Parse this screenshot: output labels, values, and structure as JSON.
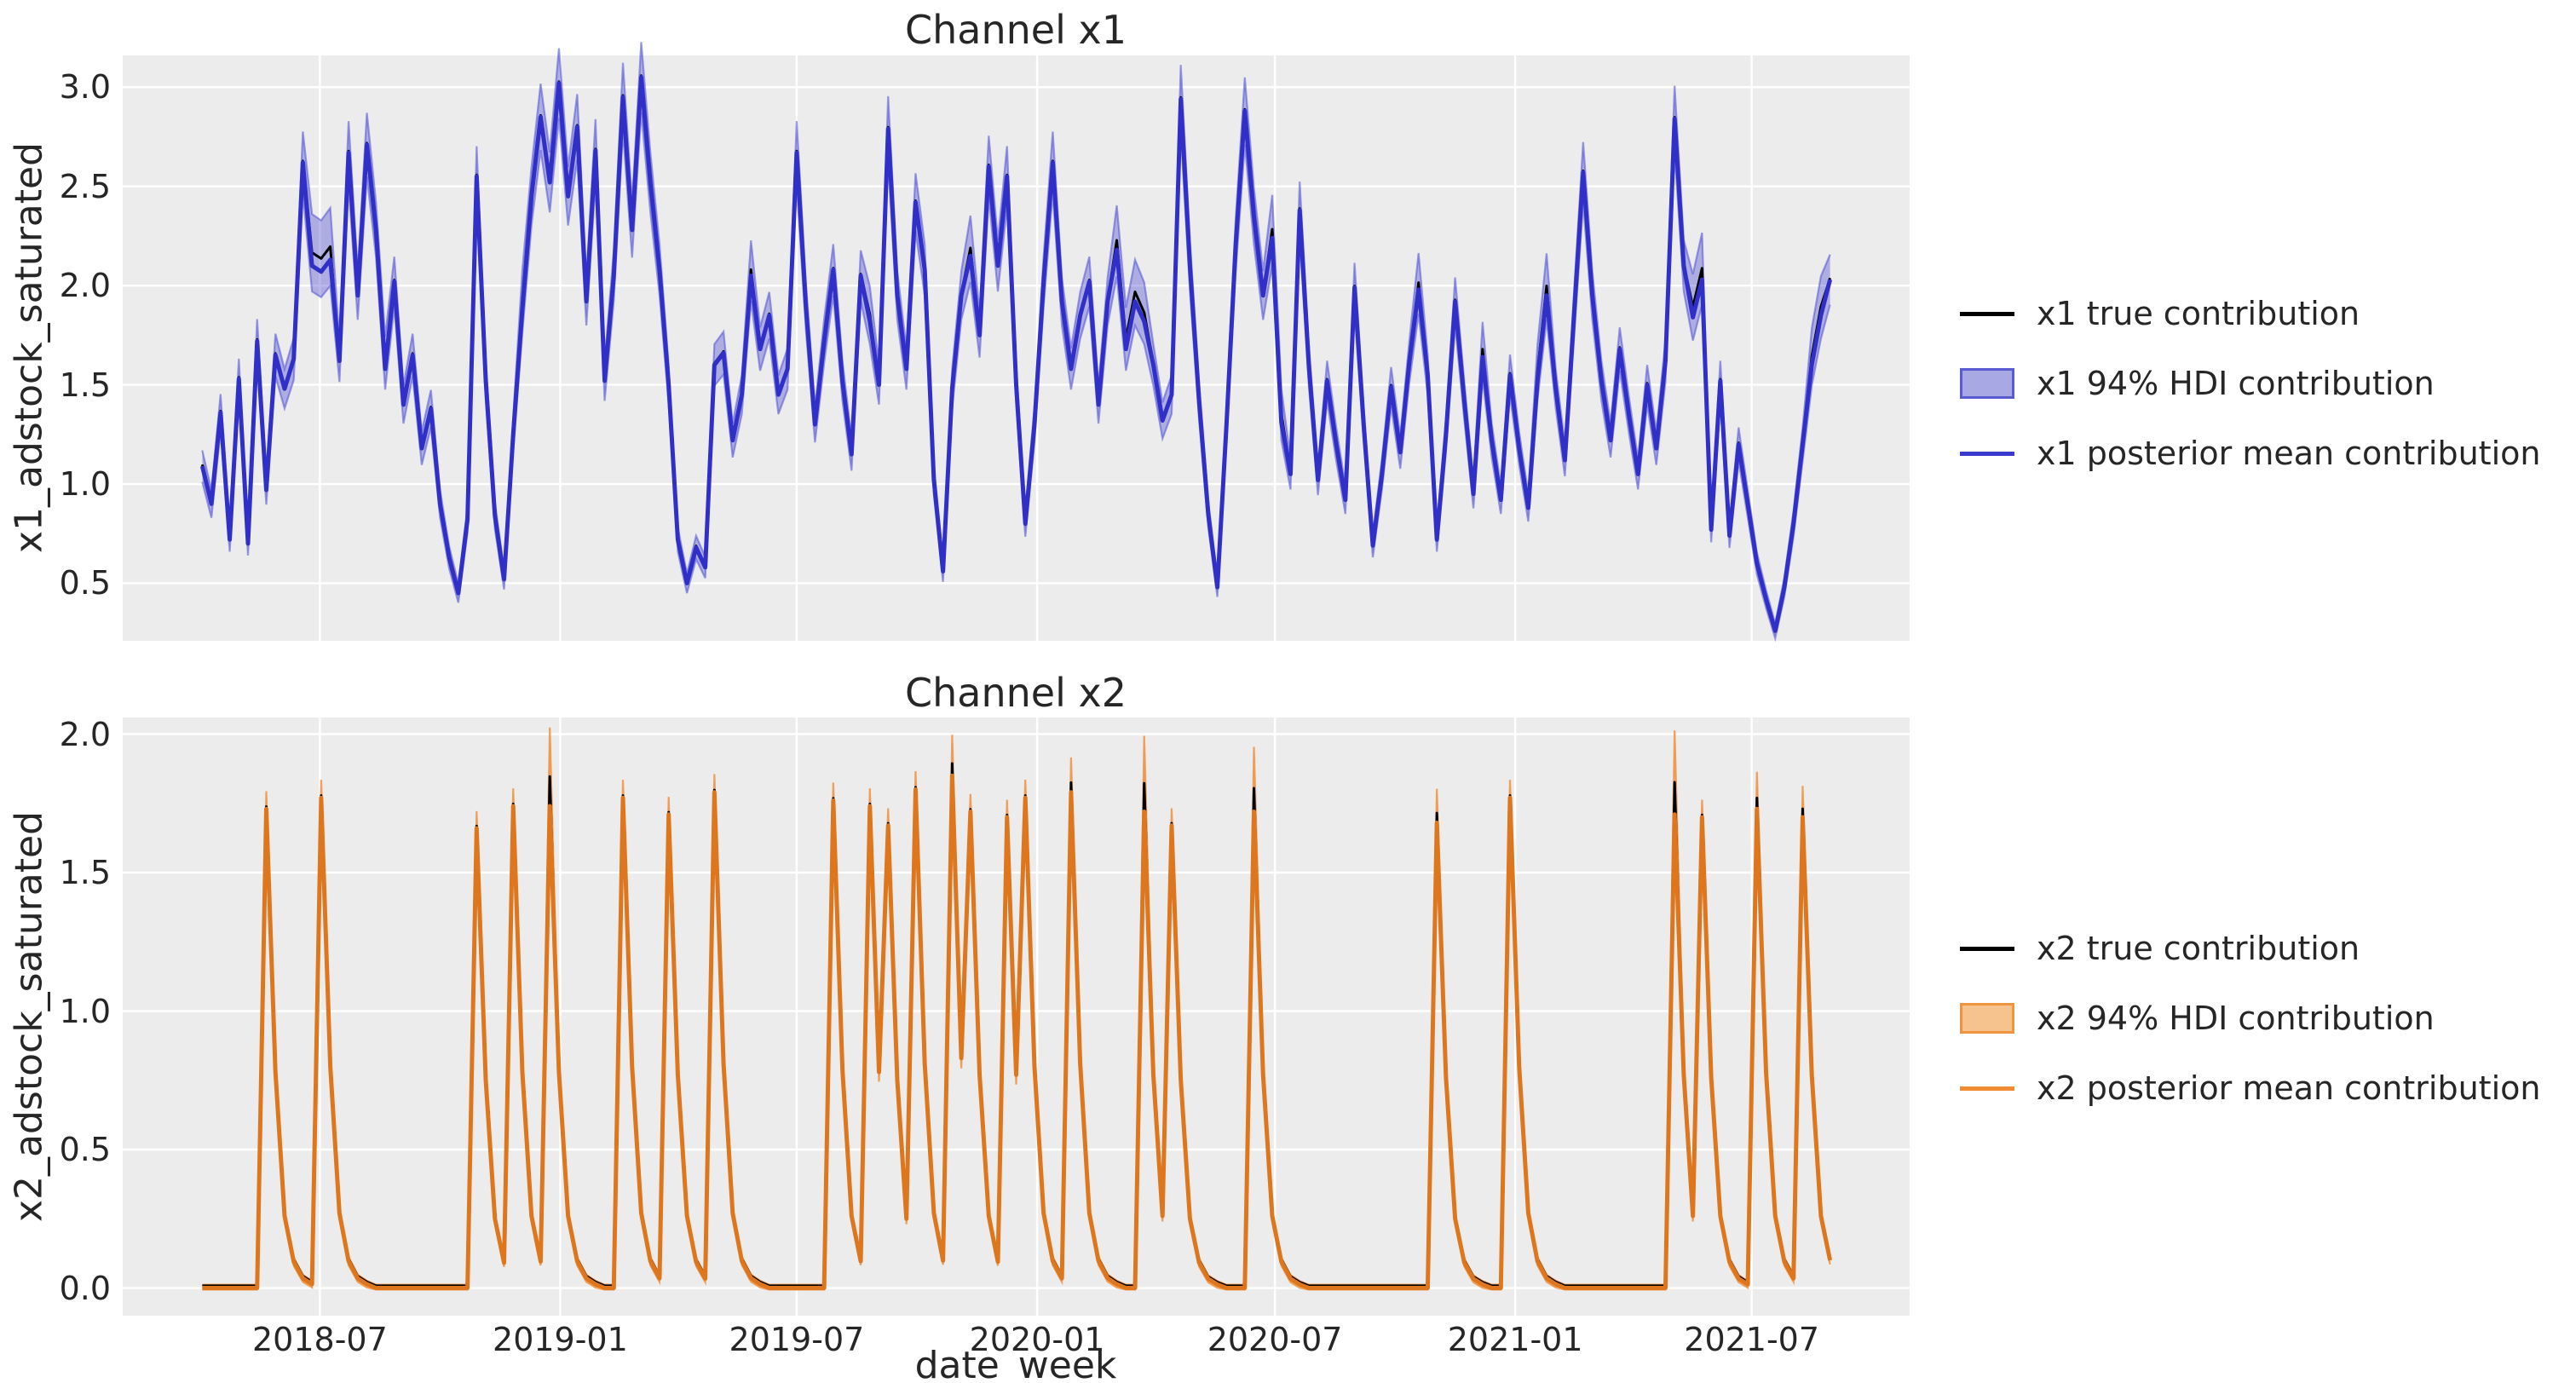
{
  "chart_data": [
    {
      "type": "line",
      "title": "Channel x1",
      "ylabel": "x1_adstock_saturated",
      "x_unit": "week",
      "x_start": "2018-04-02",
      "n_points": 179,
      "ylim": [
        0.21,
        3.16
      ],
      "yticks": [
        3.0,
        2.5,
        2.0,
        1.5,
        1.0,
        0.5
      ],
      "ytick_labels": [
        "3.0",
        "2.5",
        "2.0",
        "1.5",
        "1.0",
        "0.5"
      ],
      "grid": true,
      "legend_position": "right",
      "legend": [
        {
          "label": "x1 true contribution",
          "type": "line",
          "color": "#000000"
        },
        {
          "label": "x1 94% HDI contribution",
          "type": "patch",
          "color": "#a8a8e4",
          "edge": "#5a5ad2"
        },
        {
          "label": "x1 posterior mean contribution",
          "type": "line",
          "color": "#3a3ad0"
        }
      ],
      "colors": {
        "mean": "#3030c8",
        "true": "#000000",
        "band_fill": "rgba(70,70,210,0.38)",
        "band_edge": "rgba(80,80,215,0.55)"
      },
      "band": {
        "rel": 0.05,
        "abs": 0.025,
        "extra": {
          "12": 0.13,
          "13": 0.13,
          "14": 0.13,
          "20": 0.06,
          "35": 0.08,
          "60": 0.05,
          "73": 0.06,
          "84": 0.07,
          "100": 0.09,
          "101": 0.1,
          "102": 0.09,
          "103": 0.08,
          "117": 0.08,
          "118": 0.08,
          "133": 0.06,
          "140": 0.07,
          "146": 0.08,
          "147": 0.09,
          "163": 0.1,
          "164": 0.11,
          "176": 0.08,
          "177": 0.08
        }
      },
      "series": [
        {
          "name": "x1 posterior mean contribution",
          "values": [
            1.09,
            0.9,
            1.36,
            0.72,
            1.53,
            0.7,
            1.72,
            0.97,
            1.65,
            1.48,
            1.63,
            2.62,
            2.1,
            2.07,
            2.13,
            1.62,
            2.67,
            1.95,
            2.71,
            2.28,
            1.58,
            2.02,
            1.4,
            1.65,
            1.18,
            1.38,
            0.9,
            0.63,
            0.45,
            0.82,
            2.55,
            1.52,
            0.84,
            0.52,
            1.25,
            1.88,
            2.45,
            2.85,
            2.52,
            3.02,
            2.45,
            2.8,
            1.92,
            2.68,
            1.52,
            2.05,
            2.95,
            2.28,
            3.05,
            2.52,
            2.08,
            1.5,
            0.72,
            0.5,
            0.68,
            0.58,
            1.6,
            1.66,
            1.22,
            1.45,
            2.05,
            1.68,
            1.85,
            1.45,
            1.58,
            2.67,
            1.9,
            1.3,
            1.72,
            2.08,
            1.52,
            1.15,
            2.05,
            1.82,
            1.5,
            2.79,
            1.95,
            1.58,
            2.42,
            2.08,
            1.02,
            0.56,
            1.48,
            1.95,
            2.15,
            1.75,
            2.6,
            2.1,
            2.55,
            1.5,
            0.8,
            1.3,
            2.02,
            2.62,
            1.92,
            1.58,
            1.85,
            2.02,
            1.4,
            1.92,
            2.18,
            1.68,
            1.92,
            1.82,
            1.6,
            1.32,
            1.45,
            2.94,
            2.1,
            1.42,
            0.85,
            0.48,
            1.3,
            2.2,
            2.88,
            2.35,
            1.95,
            2.24,
            1.31,
            1.05,
            2.38,
            1.6,
            1.02,
            1.52,
            1.2,
            0.92,
            1.99,
            1.3,
            0.69,
            1.05,
            1.49,
            1.16,
            1.62,
            1.98,
            1.55,
            0.72,
            1.25,
            1.92,
            1.42,
            0.95,
            1.64,
            1.22,
            0.92,
            1.55,
            1.18,
            0.88,
            1.52,
            1.95,
            1.48,
            1.12,
            1.85,
            2.57,
            1.95,
            1.52,
            1.22,
            1.68,
            1.35,
            1.05,
            1.5,
            1.18,
            1.62,
            2.84,
            2.1,
            1.84,
            2.03,
            0.77,
            1.52,
            0.74,
            1.2,
            0.9,
            0.6,
            0.42,
            0.26,
            0.48,
            0.8,
            1.2,
            1.6,
            1.85,
            2.03
          ]
        }
      ]
    },
    {
      "type": "line",
      "title": "Channel x2",
      "ylabel": "x2_adstock_saturated",
      "x_unit": "week",
      "x_start": "2018-04-02",
      "n_points": 179,
      "ylim": [
        -0.1,
        2.06
      ],
      "yticks": [
        2.0,
        1.5,
        1.0,
        0.5,
        0.0
      ],
      "ytick_labels": [
        "2.0",
        "1.5",
        "1.0",
        "0.5",
        "0.0"
      ],
      "grid": true,
      "legend_position": "right",
      "legend": [
        {
          "label": "x2 true contribution",
          "type": "line",
          "color": "#000000"
        },
        {
          "label": "x2 94% HDI contribution",
          "type": "patch",
          "color": "#f6c38e",
          "edge": "#ef9540"
        },
        {
          "label": "x2 posterior mean contribution",
          "type": "line",
          "color": "#ef8b33"
        }
      ],
      "colors": {
        "mean": "#dd761c",
        "true": "#000000",
        "band_fill": "rgba(248,152,58,0.45)",
        "band_edge": "rgba(240,135,45,0.75)"
      },
      "band": {
        "rel": 0.03,
        "abs": 0.012,
        "extra": {
          "38": 0.22,
          "82": 0.08,
          "95": 0.06,
          "103": 0.21,
          "115": 0.17,
          "135": 0.06,
          "161": 0.24,
          "170": 0.07,
          "175": 0.05
        }
      },
      "series": [
        {
          "name": "x2 posterior mean contribution",
          "values": [
            0,
            0,
            0,
            0,
            0,
            0,
            0,
            1.73,
            0.78,
            0.26,
            0.095,
            0.035,
            0.014,
            1.77,
            0.8,
            0.27,
            0.097,
            0.035,
            0.014,
            0,
            0,
            0,
            0,
            0,
            0,
            0,
            0,
            0,
            0,
            0,
            1.66,
            0.75,
            0.25,
            0.091,
            1.74,
            0.78,
            0.26,
            0.096,
            1.74,
            0.78,
            0.26,
            0.096,
            0.035,
            0.014,
            0,
            0,
            1.77,
            0.8,
            0.27,
            0.097,
            0.035,
            1.71,
            0.77,
            0.26,
            0.094,
            0.034,
            1.79,
            0.81,
            0.27,
            0.098,
            0.036,
            0.014,
            0,
            0,
            0,
            0,
            0,
            0,
            0,
            1.76,
            0.79,
            0.26,
            0.097,
            1.74,
            0.78,
            1.67,
            0.75,
            0.25,
            1.8,
            0.81,
            0.27,
            0.099,
            1.85,
            0.83,
            1.72,
            0.77,
            0.26,
            0.095,
            1.7,
            0.77,
            1.77,
            0.8,
            0.27,
            0.097,
            0.035,
            1.79,
            0.81,
            0.27,
            0.098,
            0.036,
            0.014,
            0,
            0,
            1.72,
            0.77,
            0.26,
            1.67,
            0.75,
            0.25,
            0.092,
            0.033,
            0.013,
            0,
            0,
            0,
            1.72,
            0.77,
            0.26,
            0.095,
            0.034,
            0.013,
            0,
            0,
            0,
            0,
            0,
            0,
            0,
            0,
            0,
            0,
            0,
            0,
            0,
            0,
            1.68,
            0.76,
            0.25,
            0.092,
            0.033,
            0.013,
            0,
            0,
            1.77,
            0.8,
            0.27,
            0.097,
            0.035,
            0.014,
            0,
            0,
            0,
            0,
            0,
            0,
            0,
            0,
            0,
            0,
            0,
            0,
            1.71,
            0.77,
            0.26,
            1.7,
            0.76,
            0.26,
            0.094,
            0.034,
            0.013,
            1.73,
            0.78,
            0.26,
            0.095,
            0.035,
            1.7,
            0.77,
            0.26,
            0.1
          ]
        }
      ]
    }
  ],
  "xaxis": {
    "label": "date_week",
    "ticks": [
      {
        "label": "2018-07",
        "week": 12.86
      },
      {
        "label": "2019-01",
        "week": 39.14
      },
      {
        "label": "2019-07",
        "week": 65.0
      },
      {
        "label": "2020-01",
        "week": 91.29
      },
      {
        "label": "2020-07",
        "week": 117.29
      },
      {
        "label": "2021-01",
        "week": 143.57
      },
      {
        "label": "2021-07",
        "week": 169.43
      }
    ],
    "xlim_weeks": [
      -8.7,
      186.7
    ]
  },
  "style": {
    "axes_background": "#ececec",
    "grid_color": "#ffffff",
    "text_color": "#262626",
    "figure_background": "#ffffff"
  }
}
